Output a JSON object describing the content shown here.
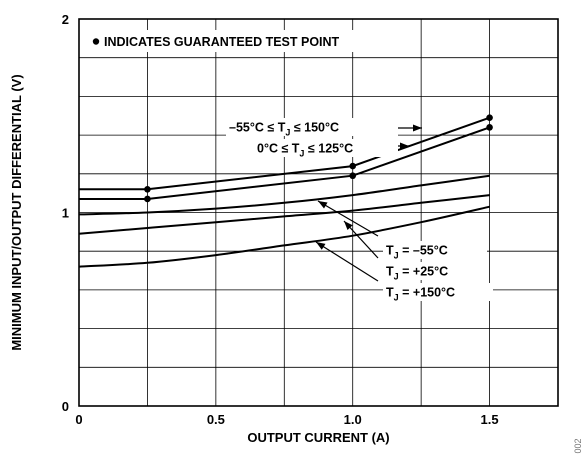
{
  "chart_data": {
    "type": "line",
    "xlabel": "OUTPUT CURRENT (A)",
    "ylabel": "MINIMUM INPUT/OUTPUT DIFFERENTIAL (V)",
    "xlim": [
      0,
      1.75
    ],
    "ylim": [
      0,
      2
    ],
    "x_ticks": [
      "0",
      "0.5",
      "1.0",
      "1.5"
    ],
    "y_ticks": [
      "0",
      "1",
      "2"
    ],
    "grid": true,
    "legend_note": "• INDICATES GUARANTEED TEST POINT",
    "figure_code": "002",
    "series": [
      {
        "name": "–55°C ≤ TJ ≤ 150°C",
        "label_main": "–55°C ≤ T",
        "label_sub": "J",
        "label_tail": " ≤ 150°C",
        "x": [
          0,
          0.25,
          1.0,
          1.5
        ],
        "y": [
          1.12,
          1.12,
          1.24,
          1.49
        ],
        "markers": [
          0.25,
          1.0,
          1.5
        ]
      },
      {
        "name": "0°C ≤ TJ ≤ 125°C",
        "label_main": "0°C ≤ T",
        "label_sub": "J",
        "label_tail": " ≤ 125°C",
        "x": [
          0,
          0.25,
          1.0,
          1.5
        ],
        "y": [
          1.07,
          1.07,
          1.19,
          1.44
        ],
        "markers": [
          0.25,
          1.0,
          1.5
        ]
      },
      {
        "name": "TJ = –55°C",
        "label_main": "T",
        "label_sub": "J",
        "label_tail": " = –55°C",
        "x": [
          0,
          0.25,
          0.5,
          0.75,
          1.0,
          1.25,
          1.5
        ],
        "y": [
          0.99,
          1.0,
          1.02,
          1.05,
          1.09,
          1.14,
          1.19
        ],
        "markers": []
      },
      {
        "name": "TJ = +25°C",
        "label_main": "T",
        "label_sub": "J",
        "label_tail": " = +25°C",
        "x": [
          0,
          0.25,
          0.5,
          0.75,
          1.0,
          1.25,
          1.5
        ],
        "y": [
          0.89,
          0.92,
          0.95,
          0.98,
          1.01,
          1.05,
          1.09
        ],
        "markers": []
      },
      {
        "name": "TJ = +150°C",
        "label_main": "T",
        "label_sub": "J",
        "label_tail": " = +150°C",
        "x": [
          0,
          0.25,
          0.5,
          0.75,
          1.0,
          1.25,
          1.5
        ],
        "y": [
          0.72,
          0.74,
          0.78,
          0.83,
          0.88,
          0.95,
          1.03
        ],
        "markers": []
      }
    ]
  }
}
